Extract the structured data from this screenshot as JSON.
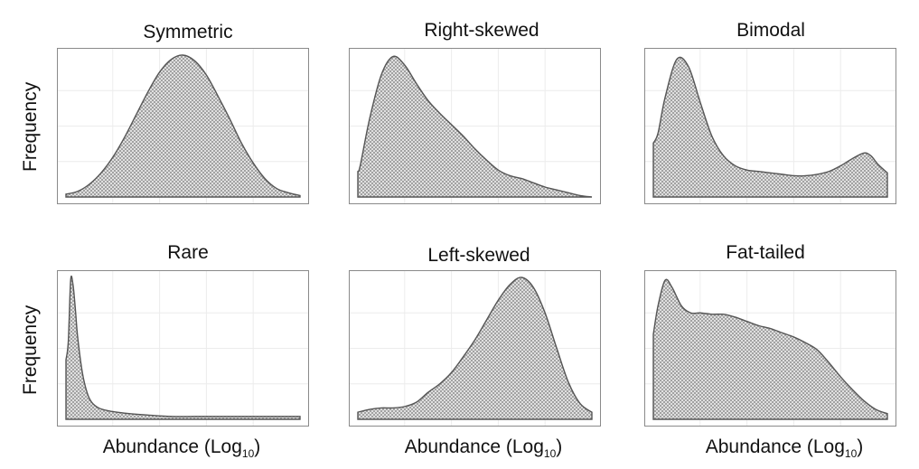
{
  "y_axis_label": "Frequency",
  "x_axis_label": "Abundance (Log",
  "x_axis_label_sub": "10",
  "x_axis_label_end": ")",
  "chart_data": [
    {
      "type": "area",
      "title": "Symmetric",
      "ylabel": "Frequency",
      "xlabel": "",
      "x": [
        0,
        0.05,
        0.1,
        0.15,
        0.2,
        0.25,
        0.3,
        0.35,
        0.4,
        0.45,
        0.5,
        0.55,
        0.6,
        0.65,
        0.7,
        0.75,
        0.8,
        0.85,
        0.9,
        0.95,
        1
      ],
      "y": [
        0.02,
        0.04,
        0.09,
        0.17,
        0.28,
        0.42,
        0.58,
        0.74,
        0.88,
        0.97,
        1.0,
        0.96,
        0.86,
        0.71,
        0.55,
        0.38,
        0.24,
        0.13,
        0.06,
        0.03,
        0.01
      ]
    },
    {
      "type": "area",
      "title": "Right-skewed",
      "ylabel": "",
      "xlabel": "",
      "x": [
        0,
        0.01,
        0.05,
        0.1,
        0.15,
        0.2,
        0.25,
        0.3,
        0.35,
        0.4,
        0.45,
        0.5,
        0.55,
        0.6,
        0.65,
        0.7,
        0.75,
        0.8,
        0.85,
        0.9,
        0.95,
        1
      ],
      "y": [
        0.18,
        0.22,
        0.55,
        0.86,
        0.99,
        0.93,
        0.8,
        0.68,
        0.59,
        0.51,
        0.43,
        0.34,
        0.26,
        0.19,
        0.15,
        0.13,
        0.1,
        0.07,
        0.05,
        0.03,
        0.01,
        0.0
      ]
    },
    {
      "type": "area",
      "title": "Bimodal",
      "ylabel": "",
      "xlabel": "",
      "x": [
        0,
        0.02,
        0.05,
        0.1,
        0.15,
        0.2,
        0.25,
        0.3,
        0.35,
        0.4,
        0.45,
        0.5,
        0.55,
        0.6,
        0.65,
        0.7,
        0.75,
        0.8,
        0.85,
        0.9,
        0.93,
        0.96,
        1
      ],
      "y": [
        0.38,
        0.45,
        0.7,
        0.97,
        0.92,
        0.67,
        0.43,
        0.29,
        0.22,
        0.19,
        0.18,
        0.17,
        0.16,
        0.15,
        0.15,
        0.16,
        0.18,
        0.22,
        0.27,
        0.31,
        0.29,
        0.23,
        0.17
      ]
    },
    {
      "type": "area",
      "title": "Rare",
      "ylabel": "Frequency",
      "xlabel": "Abundance (Log10)",
      "x": [
        0,
        0.01,
        0.02,
        0.03,
        0.04,
        0.05,
        0.07,
        0.09,
        0.11,
        0.14,
        0.18,
        0.22,
        0.27,
        0.35,
        0.45,
        0.55,
        0.65,
        0.75,
        0.85,
        0.95,
        1
      ],
      "y": [
        0.42,
        0.55,
        0.98,
        0.95,
        0.78,
        0.58,
        0.33,
        0.19,
        0.12,
        0.08,
        0.06,
        0.05,
        0.04,
        0.03,
        0.02,
        0.02,
        0.02,
        0.02,
        0.02,
        0.02,
        0.02
      ]
    },
    {
      "type": "area",
      "title": "Left-skewed",
      "ylabel": "",
      "xlabel": "Abundance (Log10)",
      "x": [
        0,
        0.05,
        0.1,
        0.15,
        0.2,
        0.25,
        0.3,
        0.35,
        0.4,
        0.45,
        0.5,
        0.55,
        0.6,
        0.65,
        0.7,
        0.75,
        0.8,
        0.85,
        0.9,
        0.95,
        1
      ],
      "y": [
        0.05,
        0.07,
        0.08,
        0.08,
        0.09,
        0.12,
        0.19,
        0.25,
        0.33,
        0.44,
        0.56,
        0.7,
        0.84,
        0.95,
        1.0,
        0.93,
        0.75,
        0.5,
        0.26,
        0.11,
        0.05
      ]
    },
    {
      "type": "area",
      "title": "Fat-tailed",
      "ylabel": "",
      "xlabel": "Abundance (Log10)",
      "x": [
        0,
        0.02,
        0.05,
        0.08,
        0.12,
        0.16,
        0.2,
        0.25,
        0.3,
        0.35,
        0.4,
        0.45,
        0.5,
        0.55,
        0.6,
        0.65,
        0.7,
        0.75,
        0.8,
        0.85,
        0.9,
        0.95,
        1
      ],
      "y": [
        0.6,
        0.8,
        0.98,
        0.93,
        0.8,
        0.75,
        0.75,
        0.74,
        0.74,
        0.72,
        0.69,
        0.66,
        0.64,
        0.61,
        0.58,
        0.54,
        0.49,
        0.4,
        0.3,
        0.21,
        0.13,
        0.07,
        0.04
      ]
    }
  ]
}
